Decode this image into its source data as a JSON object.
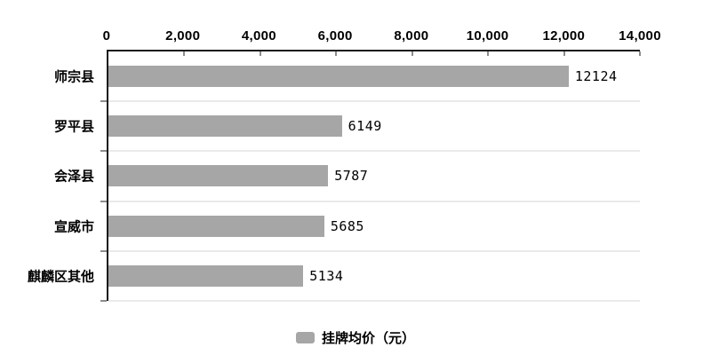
{
  "chart_data": {
    "type": "bar",
    "orientation": "horizontal",
    "title": "",
    "categories": [
      "师宗县",
      "罗平县",
      "会泽县",
      "宣威市",
      "麒麟区其他"
    ],
    "values": [
      12124,
      6149,
      5787,
      5685,
      5134
    ],
    "data_labels": [
      "12124",
      "6149",
      "5787",
      "5685",
      "5134"
    ],
    "x_axis": {
      "position": "top",
      "min": 0,
      "max": 14000,
      "tick_interval": 2000,
      "tick_labels": [
        "0",
        "2,000",
        "4,000",
        "6,000",
        "8,000",
        "10,000",
        "12,000",
        "14,000"
      ]
    },
    "grid": true,
    "legend": {
      "position": "bottom",
      "label": "挂牌均价（元）"
    },
    "colors": {
      "bar": "#a6a6a6",
      "gridline": "#d6d6d6",
      "axis": "#1a1a1a",
      "text": "#000000",
      "background": "#ffffff"
    }
  }
}
